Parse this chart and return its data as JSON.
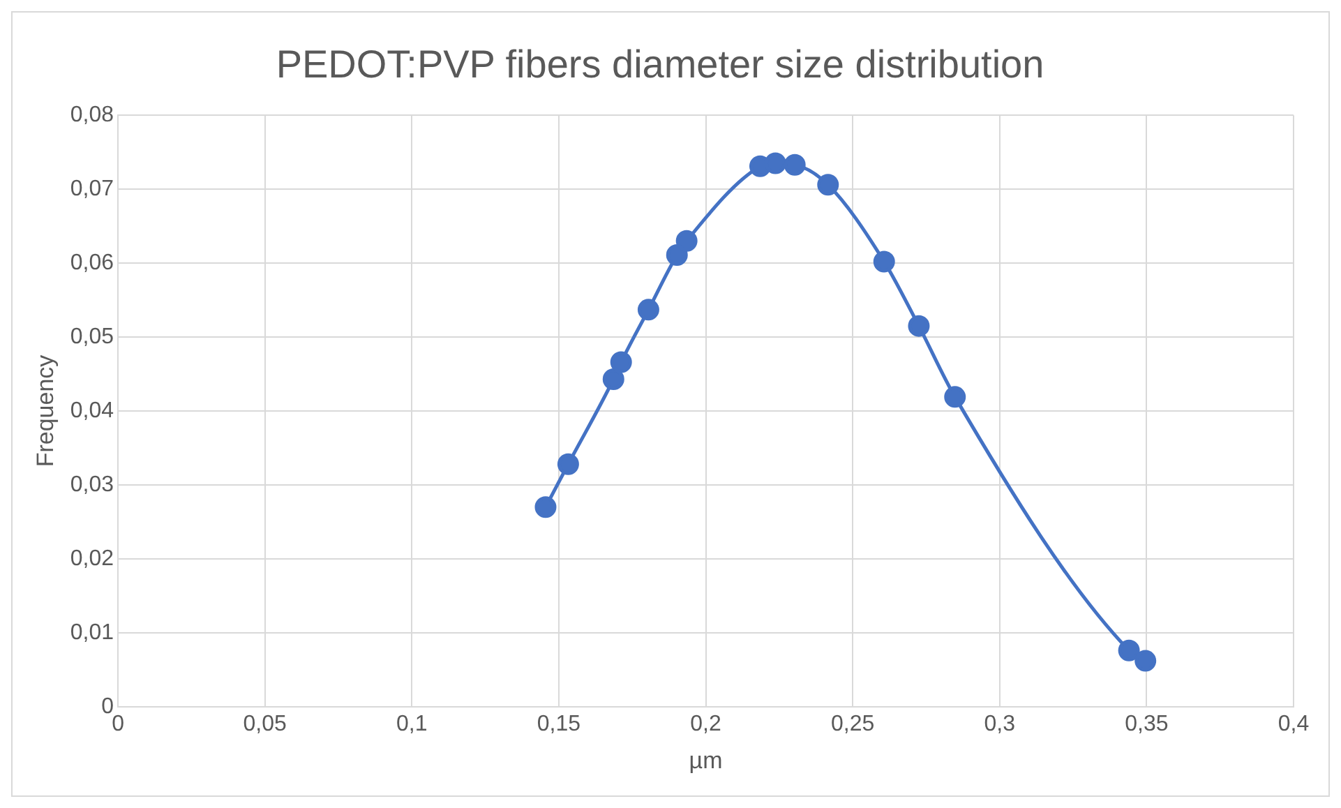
{
  "chart_data": {
    "type": "line",
    "title": "PEDOT:PVP fibers diameter size distribution",
    "xlabel": "µm",
    "ylabel": "Frequency",
    "x": [
      0.1455,
      0.1532,
      0.1686,
      0.1712,
      0.1805,
      0.1902,
      0.1935,
      0.2185,
      0.2237,
      0.2303,
      0.2416,
      0.2607,
      0.2725,
      0.2848,
      0.344,
      0.3496
    ],
    "series": [
      {
        "color": "#4472c4",
        "values": [
          0.027,
          0.0328,
          0.0443,
          0.0466,
          0.0537,
          0.0611,
          0.063,
          0.0731,
          0.0735,
          0.0733,
          0.0706,
          0.0602,
          0.0515,
          0.0419,
          0.0076,
          0.0062
        ]
      }
    ],
    "xlim": [
      0,
      0.4
    ],
    "xticks": [
      0,
      {
        "value": 0.05,
        "label": "0,05"
      },
      {
        "value": 0.1,
        "label": "0,1"
      },
      {
        "value": 0.15,
        "label": "0,15"
      },
      {
        "value": 0.2,
        "label": "0,2"
      },
      {
        "value": 0.25,
        "label": "0,25"
      },
      {
        "value": 0.3,
        "label": "0,3"
      },
      {
        "value": 0.35,
        "label": "0,35"
      },
      {
        "value": 0.4,
        "label": "0,4"
      }
    ],
    "ylim": [
      0,
      0.08
    ],
    "yticks": [
      0,
      {
        "value": 0.01,
        "label": "0,01"
      },
      {
        "value": 0.02,
        "label": "0,02"
      },
      {
        "value": 0.03,
        "label": "0,03"
      },
      {
        "value": 0.04,
        "label": "0,04"
      },
      {
        "value": 0.05,
        "label": "0,05"
      },
      {
        "value": 0.06,
        "label": "0,06"
      },
      {
        "value": 0.07,
        "label": "0,07"
      },
      {
        "value": 0.08,
        "label": "0,08"
      }
    ],
    "grid": true,
    "legend": false,
    "marker": "circle",
    "line_style": "solid"
  }
}
